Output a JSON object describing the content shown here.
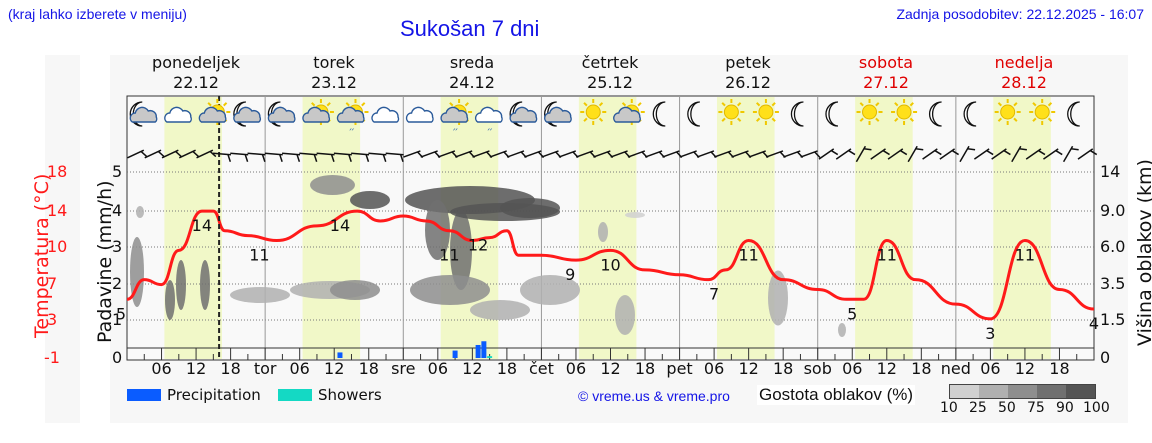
{
  "header": {
    "location_hint": "(kraj lahko izberete v meniju)",
    "title": "Sukošan 7 dni",
    "last_update": "Zadnja posodobitev: 22.12.2025 - 16:07"
  },
  "days": [
    {
      "name": "ponedeljek",
      "date": "22.12",
      "weekend": false
    },
    {
      "name": "torek",
      "date": "23.12",
      "weekend": false
    },
    {
      "name": "sreda",
      "date": "24.12",
      "weekend": false
    },
    {
      "name": "četrtek",
      "date": "25.12",
      "weekend": false
    },
    {
      "name": "petek",
      "date": "26.12",
      "weekend": false
    },
    {
      "name": "sobota",
      "date": "27.12",
      "weekend": true
    },
    {
      "name": "nedelja",
      "date": "28.12",
      "weekend": true
    }
  ],
  "x_axis": {
    "labels": [
      "06",
      "12",
      "18",
      "tor",
      "06",
      "12",
      "18",
      "sre",
      "06",
      "12",
      "18",
      "čet",
      "06",
      "12",
      "18",
      "pet",
      "06",
      "12",
      "18",
      "sob",
      "06",
      "12",
      "18",
      "ned",
      "06",
      "12",
      "18"
    ]
  },
  "axes": {
    "temperature": {
      "title": "Temperatura (°C)",
      "ticks": [
        "18",
        "14",
        "10",
        "7",
        "3",
        "-1"
      ],
      "color": "#ff1a1a"
    },
    "precipitation": {
      "title": "Padavine (mm/h)",
      "ticks": [
        "5",
        "4",
        "3",
        "2",
        "1",
        "0"
      ]
    },
    "cloud_height": {
      "title": "Višina oblakov (km)",
      "ticks": [
        "14",
        "9.0",
        "6.0",
        "3.5",
        "1.5",
        "0"
      ]
    }
  },
  "legend": {
    "precipitation": {
      "label": "Precipitation",
      "color": "#0a5cff"
    },
    "showers": {
      "label": "Showers",
      "color": "#14d9c4"
    },
    "copyright": "© vreme.us & vreme.pro",
    "density_title": "Gostota oblakov (%)",
    "density_scale": [
      "10",
      "25",
      "50",
      "75",
      "90",
      "100"
    ],
    "density_colors": [
      "#d0d0d0",
      "#b0b0b0",
      "#8e8e8e",
      "#707070",
      "#555555"
    ]
  },
  "weather_icons": [
    "moon-cloud",
    "cloud",
    "sun-cloud",
    "moon-cloud",
    "moon-cloud",
    "sun-cloud",
    "sun-cloud-rain",
    "cloud",
    "cloud",
    "sun-cloud-rain",
    "cloud-rain",
    "moon-cloud",
    "moon-cloud",
    "sun",
    "sun-cloud",
    "moon",
    "moon",
    "sun",
    "sun",
    "moon",
    "moon",
    "sun",
    "sun",
    "moon",
    "moon",
    "sun",
    "sun",
    "moon"
  ],
  "chart_data": {
    "type": "line",
    "title": "Sukošan 7 dni",
    "xlabel": "",
    "ylabel": "Temperatura (°C)",
    "secondary_ylabels": [
      "Padavine (mm/h)",
      "Višina oblakov (km)"
    ],
    "ylim": [
      -1,
      18
    ],
    "grid": true,
    "x_hours_from_start": [
      0,
      3,
      6,
      9,
      12,
      15,
      18,
      24,
      30,
      36,
      42,
      48,
      51,
      54,
      60,
      66,
      72,
      75,
      78,
      84,
      90,
      96,
      102,
      108,
      114,
      120,
      126,
      132,
      138,
      144,
      150,
      156,
      162,
      168
    ],
    "series": [
      {
        "name": "Temperatura",
        "color": "#ff1a1a",
        "x_hours": [
          0,
          3,
          6,
          9,
          13,
          15,
          17,
          21,
          26,
          33,
          40,
          44,
          48,
          52,
          56,
          60,
          63,
          66,
          68,
          72,
          78,
          84,
          90,
          96,
          101,
          104,
          108,
          114,
          120,
          125,
          128,
          132,
          137,
          144,
          150,
          156,
          162,
          168
        ],
        "values": [
          5,
          7,
          6.5,
          10,
          14,
          14,
          12,
          11.5,
          11,
          12.5,
          14,
          13,
          13.5,
          13,
          12,
          11,
          11.3,
          12,
          9.5,
          9.5,
          9,
          10,
          8,
          7.5,
          7,
          8,
          11,
          7,
          6,
          5,
          5,
          11,
          7,
          4.5,
          3,
          11,
          6,
          4
        ]
      },
      {
        "name": "Precipitation (mm/h)",
        "color": "#0a5cff",
        "x_hours": [
          37,
          57,
          61,
          62
        ],
        "values": [
          0.15,
          0.2,
          0.35,
          0.45
        ]
      },
      {
        "name": "Showers (mm/h)",
        "color": "#14d9c4",
        "x_hours": [
          63
        ],
        "values": [
          0.05
        ]
      }
    ],
    "annotations": [
      {
        "x_hours": 0,
        "text": "5"
      },
      {
        "x_hours": 13,
        "text": "14"
      },
      {
        "x_hours": 23,
        "text": "11"
      },
      {
        "x_hours": 37,
        "text": "14"
      },
      {
        "x_hours": 56,
        "text": "11"
      },
      {
        "x_hours": 61,
        "text": "12"
      },
      {
        "x_hours": 77,
        "text": "9"
      },
      {
        "x_hours": 84,
        "text": "10"
      },
      {
        "x_hours": 102,
        "text": "7"
      },
      {
        "x_hours": 108,
        "text": "11"
      },
      {
        "x_hours": 126,
        "text": "5"
      },
      {
        "x_hours": 132,
        "text": "11"
      },
      {
        "x_hours": 150,
        "text": "3"
      },
      {
        "x_hours": 156,
        "text": "11"
      },
      {
        "x_hours": 168,
        "text": "4"
      }
    ],
    "current_time_marker_hours": 16
  }
}
